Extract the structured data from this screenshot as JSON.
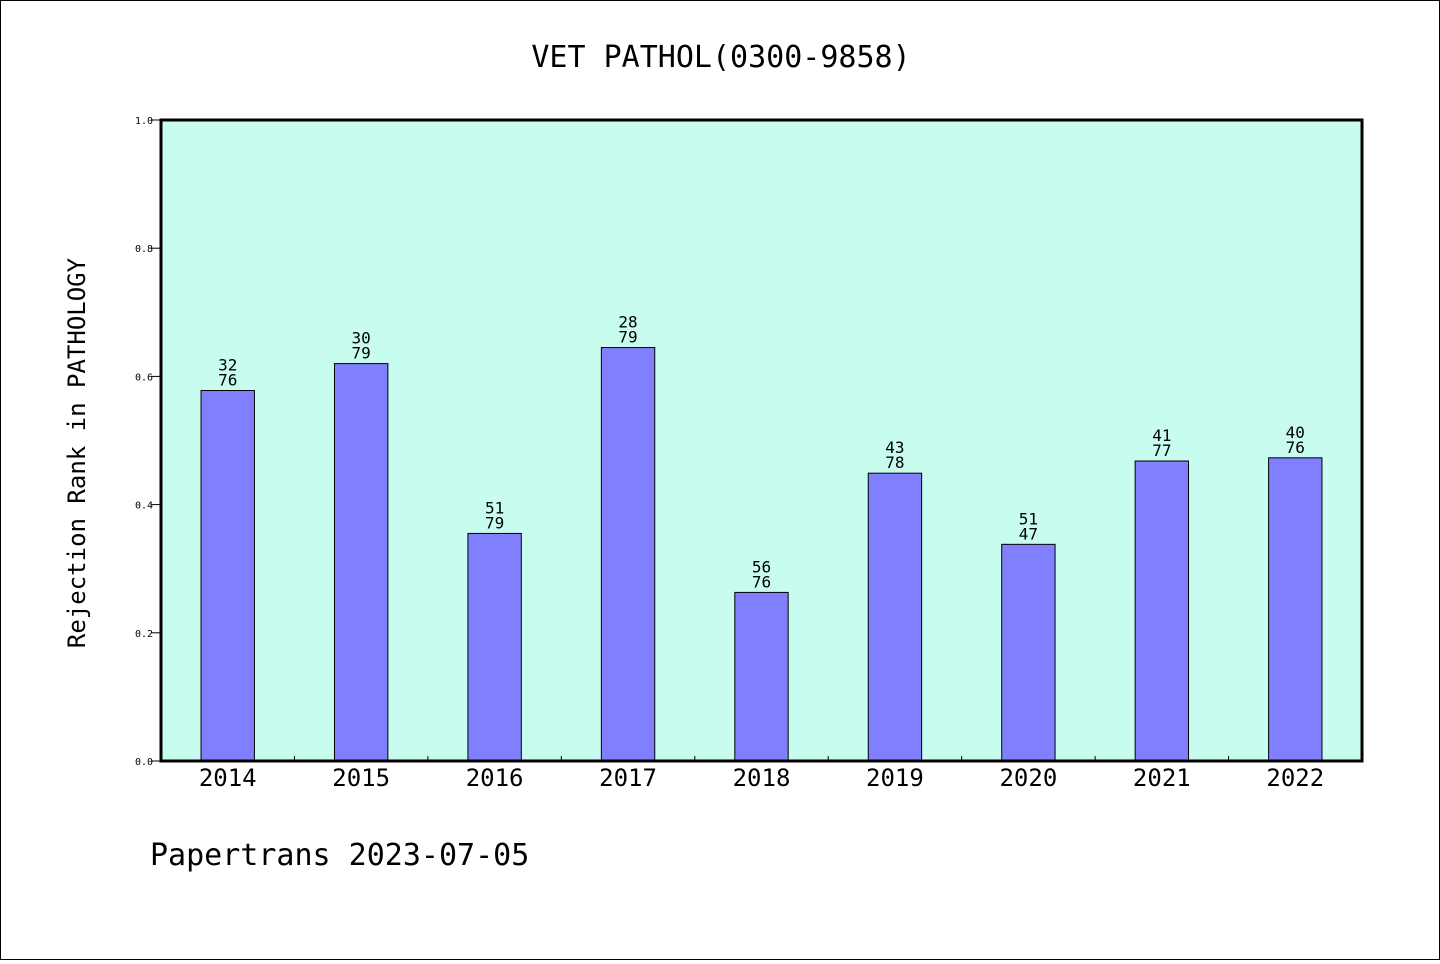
{
  "chart_data": {
    "type": "bar",
    "title": "VET PATHOL(0300-9858)",
    "ylabel": "Rejection Rank in PATHOLOGY",
    "xlabel": "",
    "ylim": [
      0.0,
      1.0
    ],
    "yticks": [
      "0.0",
      "0.2",
      "0.4",
      "0.6",
      "0.8",
      "1.0"
    ],
    "categories": [
      "2014",
      "2015",
      "2016",
      "2017",
      "2018",
      "2019",
      "2020",
      "2021",
      "2022"
    ],
    "values": [
      0.578,
      0.62,
      0.355,
      0.645,
      0.263,
      0.449,
      0.338,
      0.468,
      0.473
    ],
    "label_top": [
      "32",
      "30",
      "51",
      "28",
      "56",
      "43",
      "51",
      "41",
      "40"
    ],
    "label_bottom": [
      "76",
      "79",
      "79",
      "79",
      "76",
      "78",
      "47",
      "77",
      "76"
    ],
    "grid": false,
    "legend": "none",
    "colors": {
      "plot_background": "#c8fcee",
      "bar_fill": "#8080ff",
      "bar_edge": "#000000"
    }
  },
  "footer": "Papertrans 2023-07-05"
}
